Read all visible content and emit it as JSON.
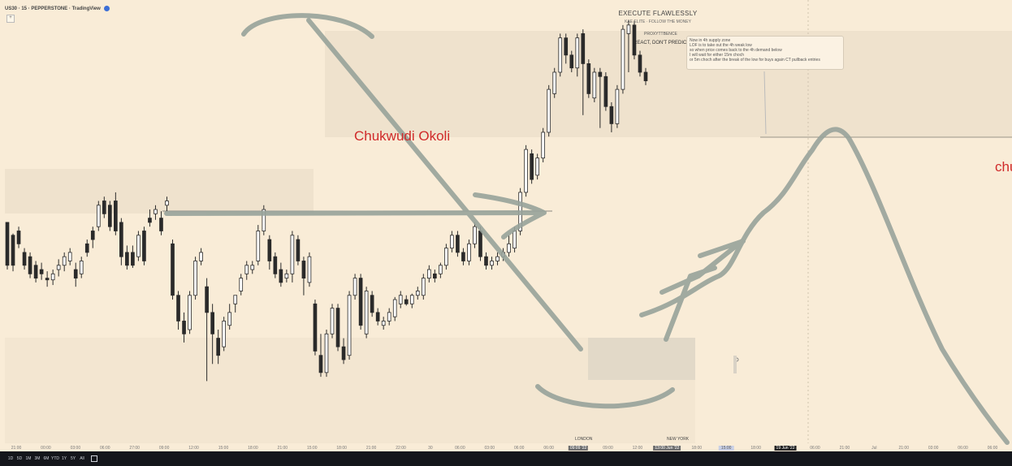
{
  "header": {
    "symbol": "US30 · 15 · PEPPERSTONE · TradingView",
    "badge_icon": "flag-icon",
    "add_label": "+"
  },
  "banner": {
    "title": "EXECUTE FLAWLESSLY",
    "subtitle": "KAE ELITE · FOLLOW THE MONEY",
    "tag": "PROXYTTBENCE",
    "motto": "REACT, DON'T PREDICT"
  },
  "note": {
    "lines": [
      "Now in 4h supply zone",
      "LOF is to take out the 4h weak low",
      "",
      "so when price comes back to the 4h demand below",
      "I will wait for either 15m choch",
      "or 5m choch after the break of the low for buys again CT pullback entries"
    ]
  },
  "watermark": "Chukwudi Okoli",
  "edge_watermark": "chu",
  "sessions": {
    "london": "LONDON",
    "newyork": "NEW YORK"
  },
  "axis": {
    "labels": [
      "21:00",
      "00:00",
      "03:00",
      "06:00",
      "27:00",
      "09:00",
      "12:00",
      "15:00",
      "18:00",
      "21:00",
      "15:00",
      "18:00",
      "21:00",
      "22:00",
      "30",
      "06:00",
      "03:00",
      "06:00",
      "06:00",
      "09:09 '22",
      "09:00",
      "12:00",
      "13:00 Jun '22",
      "18:00",
      "15:00",
      "18:00",
      "19 Jun '22",
      "06:00",
      "21:00",
      "Jul",
      "21:00",
      "03:00",
      "06:00",
      "06:00"
    ],
    "highlight_a": "09:09 '22",
    "highlight_b": "13:00 Jun '22",
    "highlight_c": "15:00",
    "highlight_d": "19 Jun '22"
  },
  "timeframes": [
    "1D",
    "5D",
    "1M",
    "3M",
    "6M",
    "YTD",
    "1Y",
    "5Y",
    "All"
  ],
  "calendar_icon": "calendar-icon",
  "colors": {
    "bg": "#f9ecd7",
    "up": "#ffffff",
    "down": "#2a2a2a",
    "zone": "#efe2cd",
    "stroke": "#9aa09b",
    "watermark": "#d02a2a"
  },
  "chart_data": {
    "type": "candlestick",
    "ohlc": [
      [
        225,
        175,
        225,
        170
      ],
      [
        210,
        175,
        212,
        168
      ],
      [
        215,
        200,
        220,
        195
      ],
      [
        190,
        175,
        195,
        170
      ],
      [
        185,
        165,
        190,
        160
      ],
      [
        175,
        160,
        180,
        155
      ],
      [
        170,
        165,
        178,
        158
      ],
      [
        160,
        158,
        168,
        150
      ],
      [
        158,
        165,
        170,
        152
      ],
      [
        170,
        175,
        182,
        162
      ],
      [
        175,
        185,
        190,
        168
      ],
      [
        180,
        190,
        195,
        175
      ],
      [
        170,
        160,
        178,
        150
      ],
      [
        165,
        180,
        185,
        160
      ],
      [
        200,
        190,
        205,
        185
      ],
      [
        215,
        205,
        220,
        195
      ],
      [
        220,
        245,
        250,
        215
      ],
      [
        250,
        235,
        255,
        230
      ],
      [
        245,
        220,
        250,
        215
      ],
      [
        250,
        215,
        260,
        210
      ],
      [
        225,
        185,
        230,
        175
      ],
      [
        190,
        175,
        198,
        170
      ],
      [
        190,
        175,
        198,
        172
      ],
      [
        185,
        210,
        215,
        180
      ],
      [
        215,
        180,
        220,
        175
      ],
      [
        230,
        225,
        240,
        220
      ],
      [
        235,
        240,
        245,
        228
      ],
      [
        230,
        215,
        238,
        210
      ],
      [
        245,
        250,
        255,
        238
      ],
      [
        200,
        140,
        205,
        135
      ],
      [
        140,
        110,
        145,
        100
      ],
      [
        110,
        95,
        120,
        85
      ],
      [
        100,
        140,
        145,
        95
      ],
      [
        140,
        180,
        185,
        135
      ],
      [
        180,
        190,
        195,
        175
      ],
      [
        150,
        120,
        160,
        40
      ],
      [
        120,
        95,
        130,
        60
      ],
      [
        90,
        70,
        100,
        60
      ],
      [
        80,
        110,
        115,
        75
      ],
      [
        105,
        120,
        130,
        100
      ],
      [
        130,
        140,
        140,
        120
      ],
      [
        145,
        160,
        165,
        140
      ],
      [
        165,
        175,
        180,
        158
      ],
      [
        170,
        175,
        180,
        165
      ],
      [
        180,
        215,
        222,
        175
      ],
      [
        215,
        240,
        245,
        210
      ],
      [
        205,
        180,
        210,
        170
      ],
      [
        185,
        165,
        190,
        160
      ],
      [
        170,
        155,
        178,
        150
      ],
      [
        160,
        165,
        170,
        155
      ],
      [
        165,
        210,
        215,
        155
      ],
      [
        205,
        180,
        210,
        175
      ],
      [
        180,
        160,
        185,
        140
      ],
      [
        155,
        185,
        190,
        150
      ],
      [
        130,
        75,
        135,
        70
      ],
      [
        70,
        50,
        95,
        45
      ],
      [
        50,
        95,
        100,
        45
      ],
      [
        95,
        125,
        130,
        90
      ],
      [
        125,
        80,
        130,
        75
      ],
      [
        80,
        65,
        90,
        60
      ],
      [
        70,
        140,
        145,
        65
      ],
      [
        140,
        160,
        165,
        135
      ],
      [
        160,
        105,
        165,
        100
      ],
      [
        95,
        145,
        150,
        90
      ],
      [
        140,
        120,
        145,
        115
      ],
      [
        120,
        110,
        125,
        105
      ],
      [
        105,
        110,
        115,
        100
      ],
      [
        110,
        120,
        125,
        105
      ],
      [
        115,
        135,
        138,
        110
      ],
      [
        130,
        140,
        145,
        125
      ],
      [
        135,
        130,
        140,
        128
      ],
      [
        130,
        140,
        142,
        125
      ],
      [
        140,
        145,
        150,
        135
      ],
      [
        140,
        160,
        165,
        135
      ],
      [
        160,
        170,
        175,
        155
      ],
      [
        165,
        160,
        170,
        155
      ],
      [
        165,
        175,
        178,
        160
      ],
      [
        175,
        195,
        200,
        170
      ],
      [
        195,
        210,
        215,
        190
      ],
      [
        210,
        190,
        215,
        185
      ],
      [
        190,
        180,
        195,
        175
      ],
      [
        180,
        200,
        205,
        175
      ],
      [
        200,
        220,
        225,
        195
      ],
      [
        215,
        185,
        220,
        180
      ],
      [
        185,
        175,
        190,
        170
      ],
      [
        175,
        180,
        185,
        170
      ],
      [
        180,
        185,
        190,
        175
      ],
      [
        185,
        190,
        195,
        180
      ],
      [
        190,
        200,
        210,
        185
      ],
      [
        195,
        215,
        220,
        190
      ],
      [
        215,
        260,
        265,
        210
      ],
      [
        260,
        310,
        315,
        255
      ],
      [
        305,
        275,
        310,
        270
      ],
      [
        280,
        300,
        305,
        275
      ],
      [
        300,
        330,
        335,
        295
      ],
      [
        330,
        380,
        385,
        325
      ],
      [
        375,
        400,
        405,
        370
      ],
      [
        400,
        440,
        445,
        395
      ],
      [
        440,
        420,
        445,
        410
      ],
      [
        420,
        405,
        425,
        400
      ],
      [
        405,
        440,
        445,
        395
      ],
      [
        445,
        410,
        450,
        350
      ],
      [
        410,
        375,
        415,
        370
      ],
      [
        370,
        400,
        405,
        365
      ],
      [
        400,
        395,
        405,
        335
      ],
      [
        395,
        360,
        400,
        355
      ],
      [
        360,
        340,
        365,
        330
      ],
      [
        340,
        380,
        385,
        335
      ],
      [
        380,
        450,
        455,
        375
      ],
      [
        445,
        455,
        460,
        400
      ],
      [
        455,
        420,
        460,
        415
      ],
      [
        420,
        400,
        425,
        395
      ],
      [
        400,
        390,
        405,
        385
      ]
    ],
    "ylim": [
      30,
      470
    ]
  }
}
